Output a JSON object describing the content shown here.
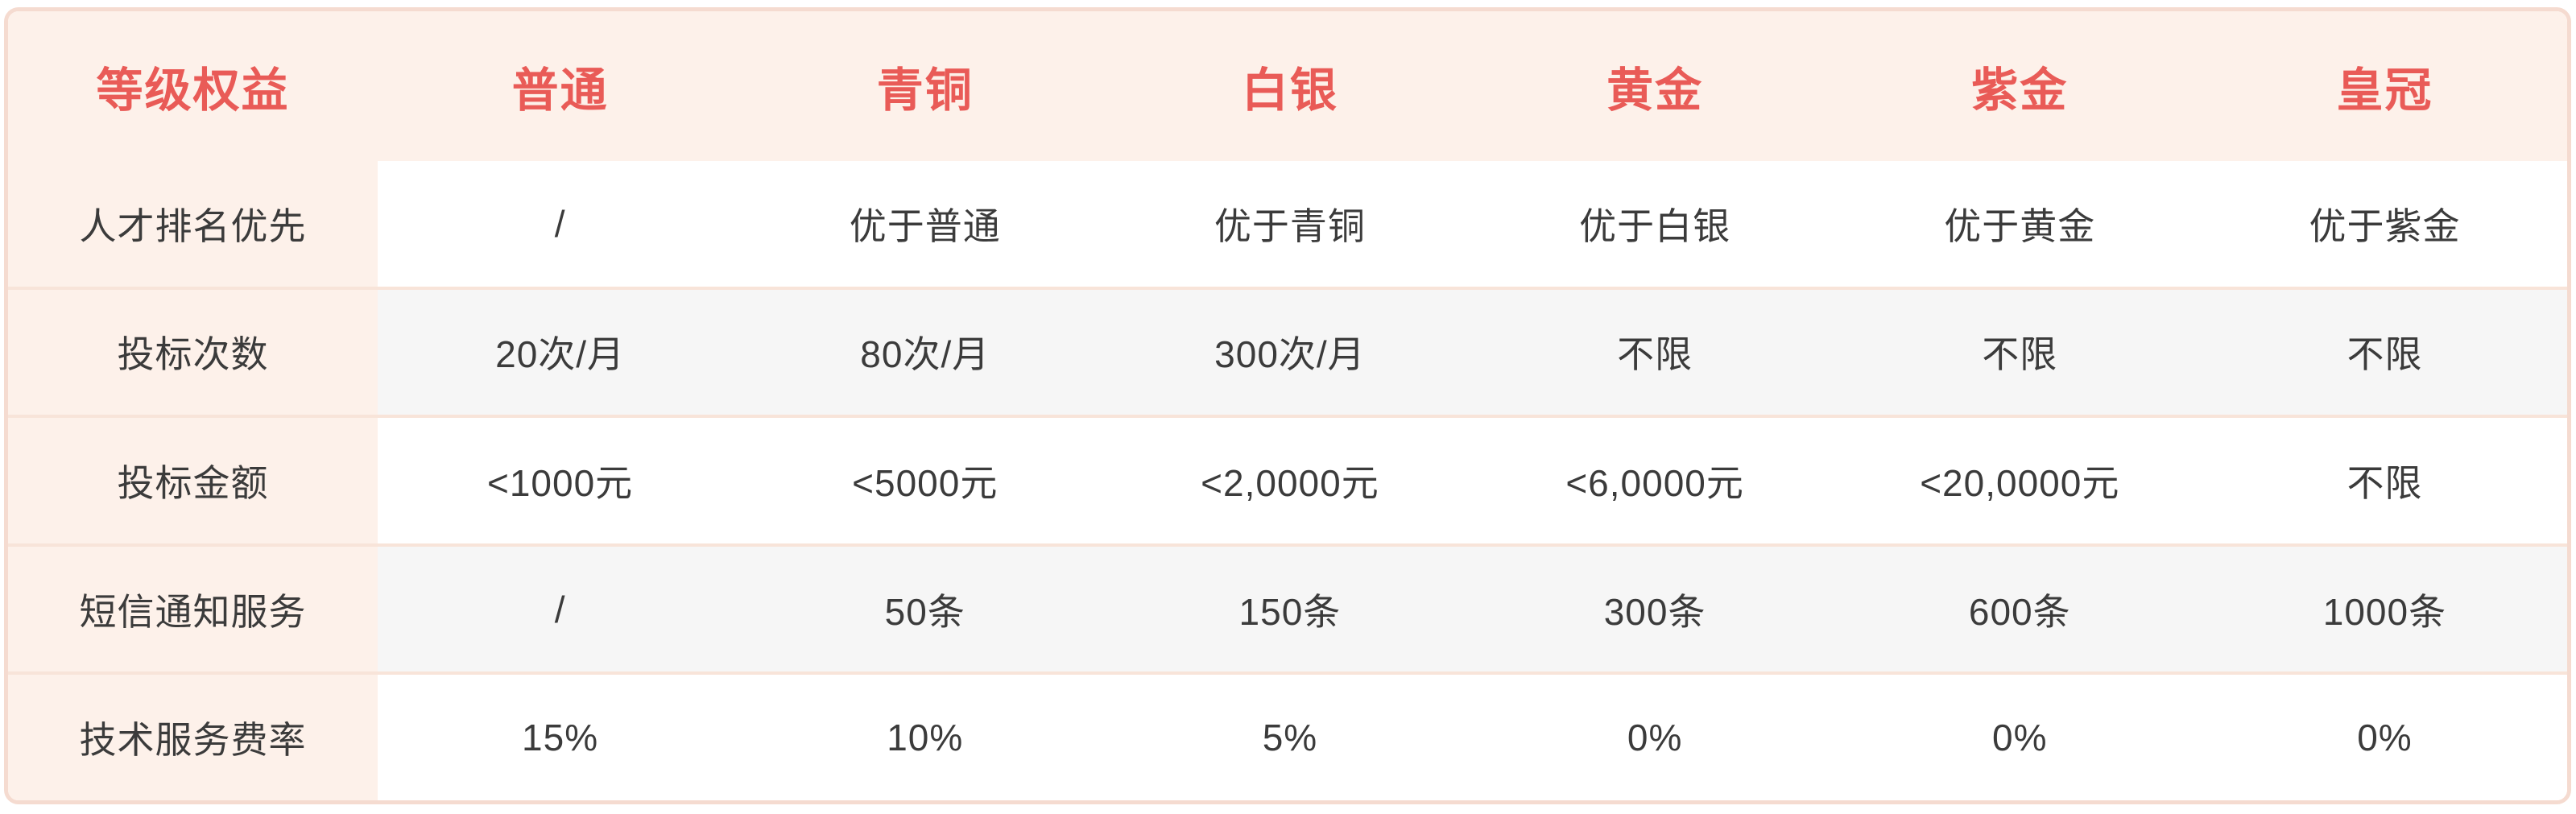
{
  "table": {
    "header": {
      "label": "等级权益",
      "tiers": [
        "普通",
        "青铜",
        "白银",
        "黄金",
        "紫金",
        "皇冠"
      ]
    },
    "rows": [
      {
        "label": "人才排名优先",
        "shaded": false,
        "values": [
          "/",
          "优于普通",
          "优于青铜",
          "优于白银",
          "优于黄金",
          "优于紫金"
        ]
      },
      {
        "label": "投标次数",
        "shaded": true,
        "values": [
          "20次/月",
          "80次/月",
          "300次/月",
          "不限",
          "不限",
          "不限"
        ]
      },
      {
        "label": "投标金额",
        "shaded": false,
        "values": [
          "<1000元",
          "<5000元",
          "<2,0000元",
          "<6,0000元",
          "<20,0000元",
          "不限"
        ]
      },
      {
        "label": "短信通知服务",
        "shaded": true,
        "values": [
          "/",
          "50条",
          "150条",
          "300条",
          "600条",
          "1000条"
        ]
      },
      {
        "label": "技术服务费率",
        "shaded": false,
        "values": [
          "15%",
          "10%",
          "5%",
          "0%",
          "0%",
          "0%"
        ]
      }
    ],
    "colors": {
      "accent_red": "#e95b57",
      "header_cream": "#fdf1ea",
      "card_border_pink": "#f5dbd0",
      "row_divider_pink": "#f8e4d9",
      "shaded_row_gray": "#f6f6f6",
      "text_dark": "#3b3b3b",
      "page_background": "#ffffff"
    }
  },
  "chart_data": {
    "type": "table",
    "columns": [
      "等级权益",
      "普通",
      "青铜",
      "白银",
      "黄金",
      "紫金",
      "皇冠"
    ],
    "rows": [
      [
        "人才排名优先",
        "/",
        "优于普通",
        "优于青铜",
        "优于白银",
        "优于黄金",
        "优于紫金"
      ],
      [
        "投标次数",
        "20次/月",
        "80次/月",
        "300次/月",
        "不限",
        "不限",
        "不限"
      ],
      [
        "投标金额",
        "<1000元",
        "<5000元",
        "<2,0000元",
        "<6,0000元",
        "<20,0000元",
        "不限"
      ],
      [
        "短信通知服务",
        "/",
        "50条",
        "150条",
        "300条",
        "600条",
        "1000条"
      ],
      [
        "技术服务费率",
        "15%",
        "10%",
        "5%",
        "0%",
        "0%",
        "0%"
      ]
    ]
  }
}
